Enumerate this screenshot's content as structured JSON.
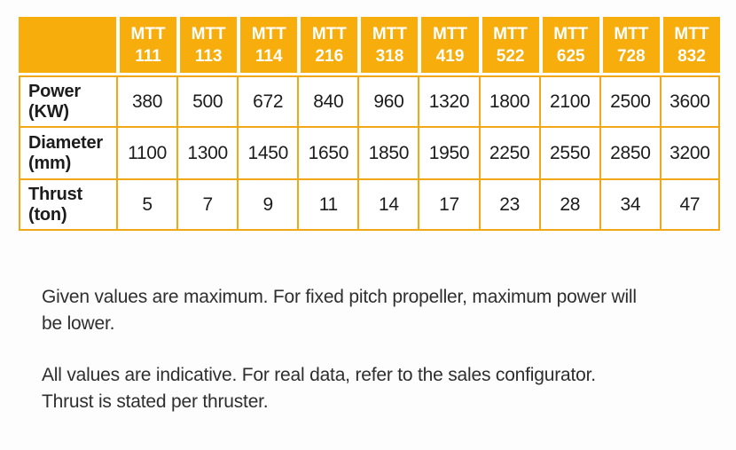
{
  "table": {
    "corner_label": "",
    "columns": [
      {
        "series": "MTT",
        "model": "111"
      },
      {
        "series": "MTT",
        "model": "113"
      },
      {
        "series": "MTT",
        "model": "114"
      },
      {
        "series": "MTT",
        "model": "216"
      },
      {
        "series": "MTT",
        "model": "318"
      },
      {
        "series": "MTT",
        "model": "419"
      },
      {
        "series": "MTT",
        "model": "522"
      },
      {
        "series": "MTT",
        "model": "625"
      },
      {
        "series": "MTT",
        "model": "728"
      },
      {
        "series": "MTT",
        "model": "832"
      }
    ],
    "rows": [
      {
        "label": "Power",
        "unit": "(KW)",
        "values": [
          380,
          500,
          672,
          840,
          960,
          1320,
          1800,
          2100,
          2500,
          3600
        ]
      },
      {
        "label": "Diameter",
        "unit": "(mm)",
        "values": [
          1100,
          1300,
          1450,
          1650,
          1850,
          1950,
          2250,
          2550,
          2850,
          3200
        ]
      },
      {
        "label": "Thrust",
        "unit": "(ton)",
        "values": [
          5,
          7,
          9,
          11,
          14,
          17,
          23,
          28,
          34,
          47
        ]
      }
    ]
  },
  "notes": [
    {
      "lines": [
        "Given values are maximum. For fixed pitch propeller, maximum power will",
        "be lower."
      ]
    },
    {
      "lines": [
        "All values are indicative. For real data, refer to the sales configurator.",
        "Thrust is stated per thruster."
      ]
    }
  ],
  "colors": {
    "header_fill": "#F7AD0B",
    "grid_border": "#F2A716",
    "header_text": "#FFFFFF",
    "value_text": "#1C1C1C",
    "note_text": "#2E2E2E"
  }
}
